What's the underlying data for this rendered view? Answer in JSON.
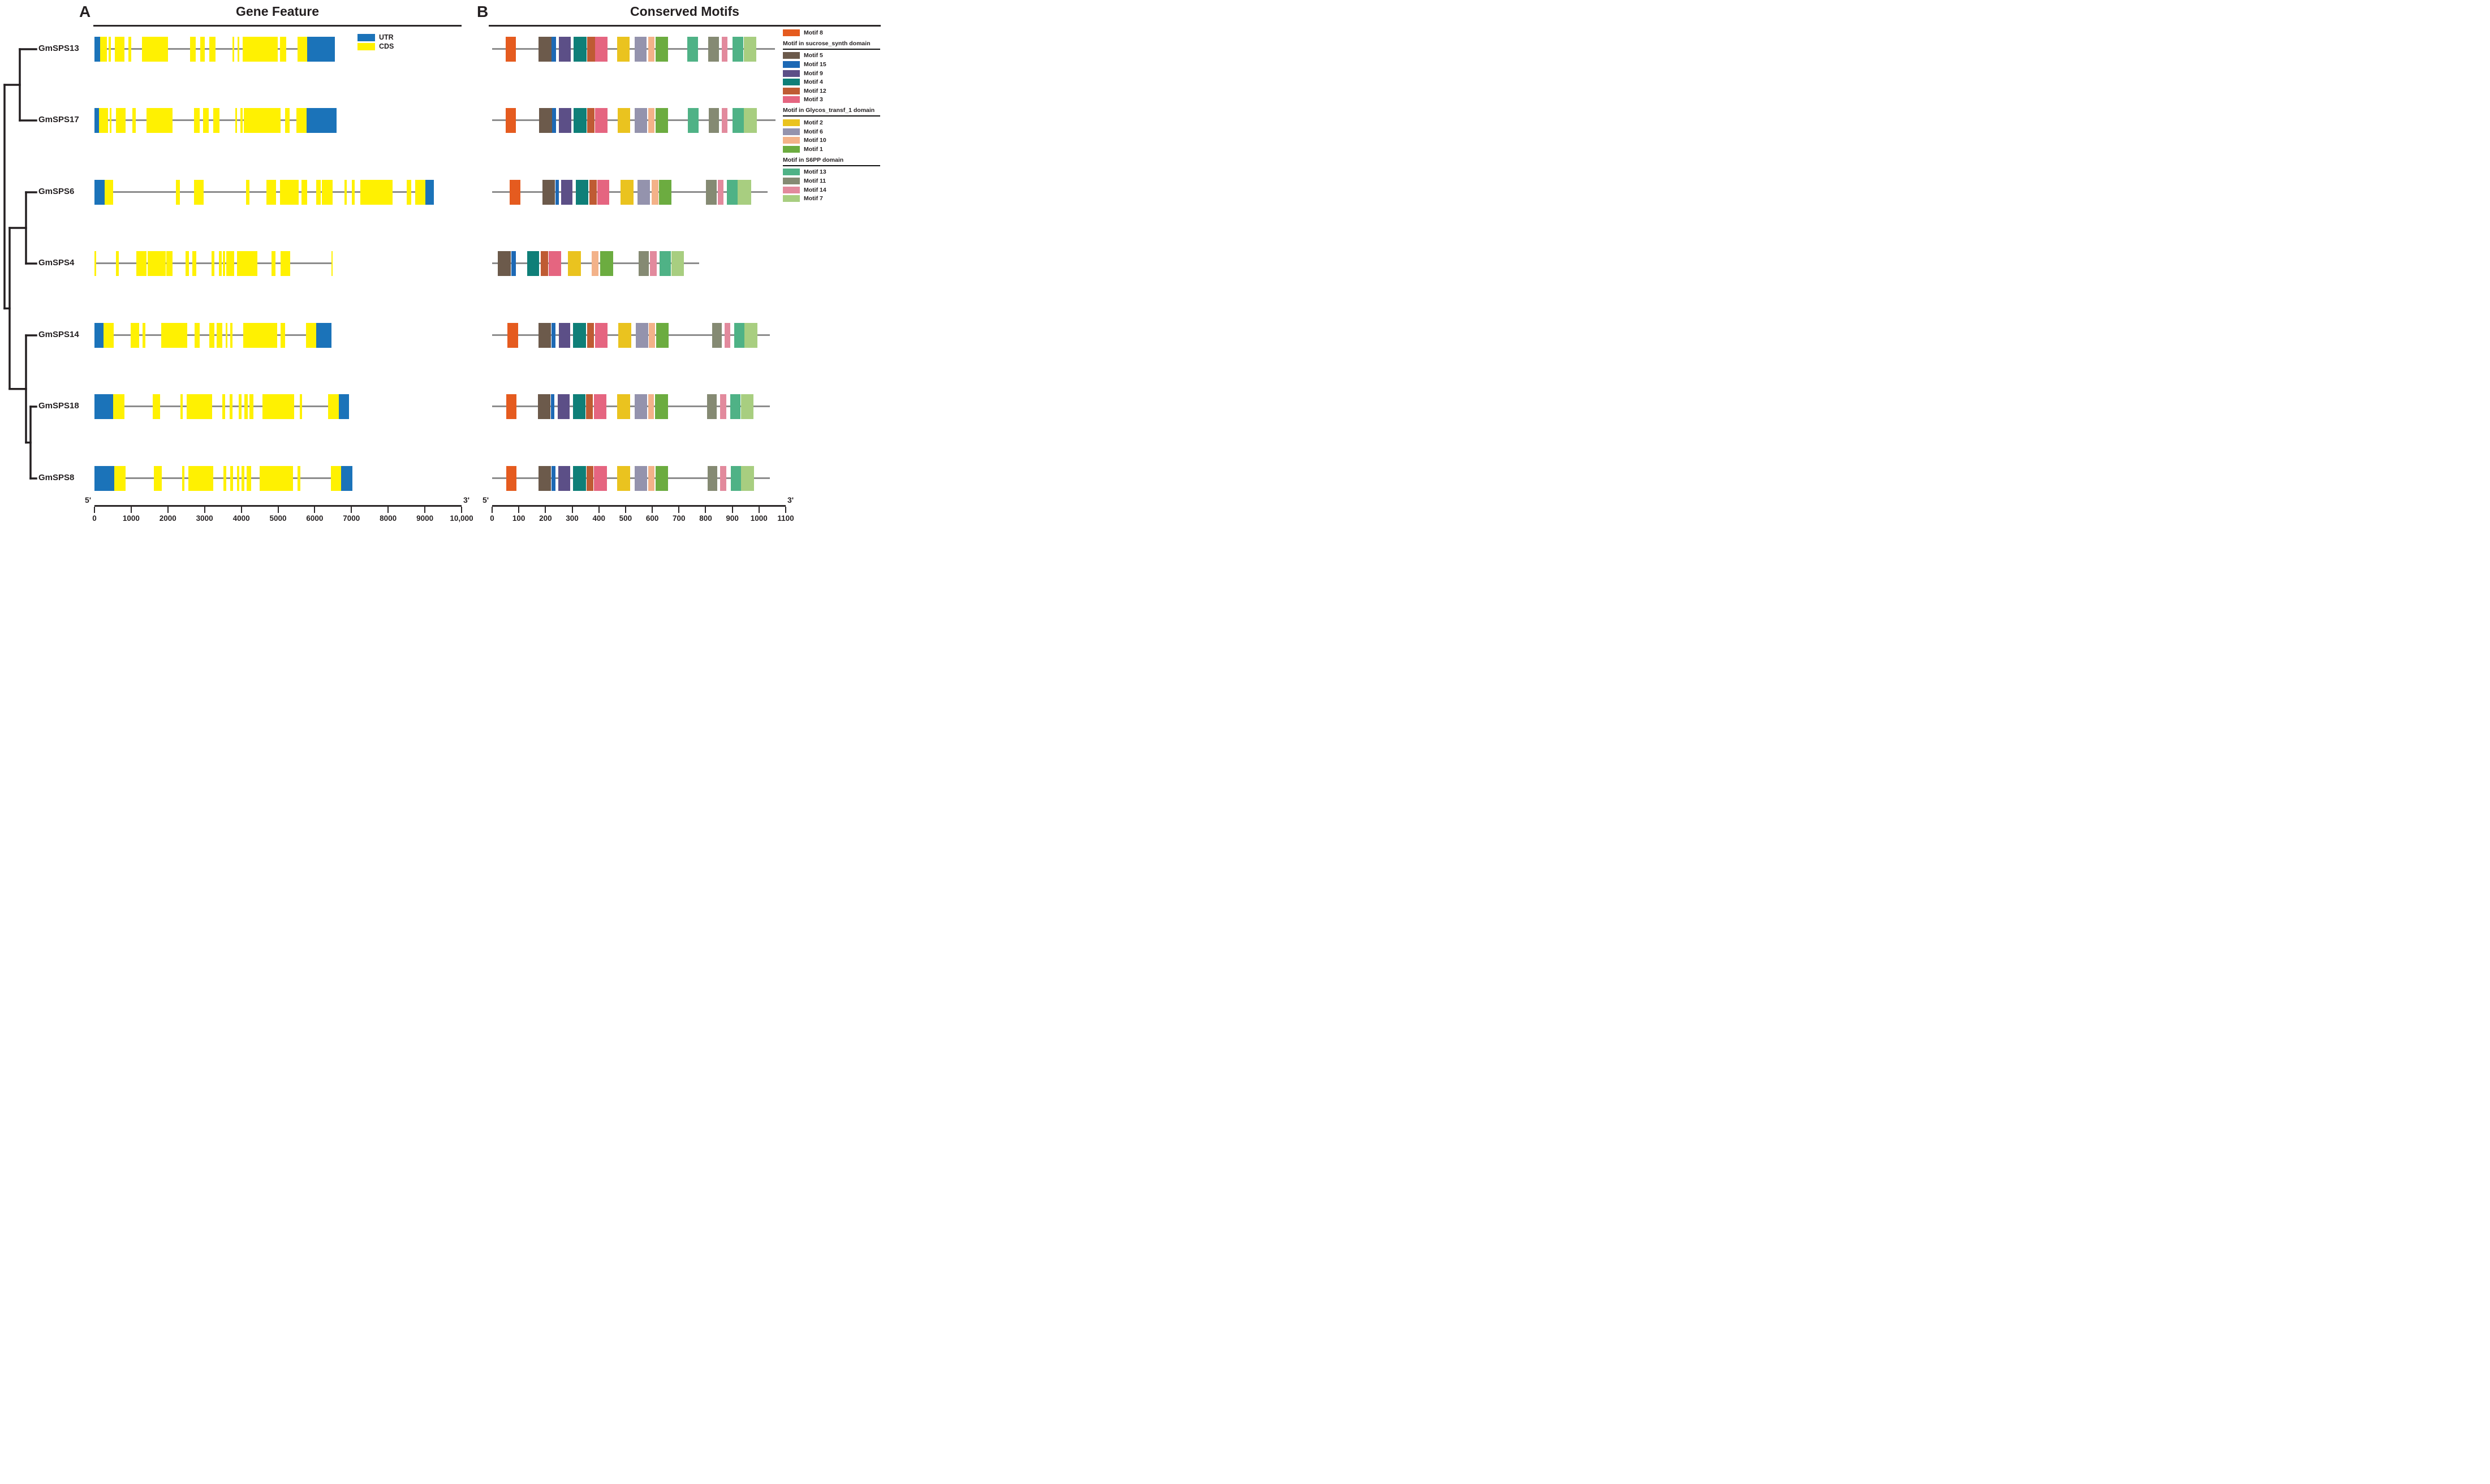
{
  "panel_a": {
    "letter": "A",
    "title": "Gene Feature",
    "legend": {
      "utr_label": "UTR",
      "cds_label": "CDS"
    },
    "axis": {
      "start_label": "5'",
      "end_label": "3'",
      "min": 0,
      "max": 10000,
      "tick_values": [
        0,
        1000,
        2000,
        3000,
        4000,
        5000,
        6000,
        7000,
        8000,
        9000,
        10000
      ],
      "tick_labels": [
        "0",
        "1000",
        "2000",
        "3000",
        "4000",
        "5000",
        "6000",
        "7000",
        "8000",
        "9000",
        "10,000"
      ]
    },
    "genes": [
      {
        "name": "GmSPS13",
        "length": 6550,
        "utr5": [
          0,
          150
        ],
        "utr3": [
          5800,
          6550
        ],
        "exons": [
          [
            150,
            340
          ],
          [
            385,
            445
          ],
          [
            550,
            820
          ],
          [
            930,
            995
          ],
          [
            1300,
            2005
          ],
          [
            2610,
            2760
          ],
          [
            2875,
            3010
          ],
          [
            3125,
            3300
          ],
          [
            3765,
            3805
          ],
          [
            3895,
            3945
          ],
          [
            4030,
            4995
          ],
          [
            5055,
            5225
          ],
          [
            5530,
            5800
          ]
        ]
      },
      {
        "name": "GmSPS17",
        "length": 6590,
        "utr5": [
          0,
          125
        ],
        "utr3": [
          5780,
          6590
        ],
        "exons": [
          [
            125,
            375
          ],
          [
            410,
            470
          ],
          [
            590,
            855
          ],
          [
            1035,
            1130
          ],
          [
            1415,
            2120
          ],
          [
            2710,
            2860
          ],
          [
            2965,
            3110
          ],
          [
            3240,
            3400
          ],
          [
            3835,
            3885
          ],
          [
            3970,
            4030
          ],
          [
            4065,
            5070
          ],
          [
            5195,
            5315
          ],
          [
            5500,
            5780
          ]
        ]
      },
      {
        "name": "GmSPS6",
        "length": 9240,
        "utr5": [
          0,
          280
        ],
        "utr3": [
          9010,
          9240
        ],
        "exons": [
          [
            280,
            510
          ],
          [
            2225,
            2320
          ],
          [
            2710,
            2980
          ],
          [
            4125,
            4220
          ],
          [
            4680,
            4945
          ],
          [
            5060,
            5570
          ],
          [
            5640,
            5790
          ],
          [
            6045,
            6160
          ],
          [
            6200,
            6490
          ],
          [
            6815,
            6880
          ],
          [
            7010,
            7085
          ],
          [
            7240,
            8120
          ],
          [
            8510,
            8625
          ],
          [
            8730,
            9010
          ]
        ]
      },
      {
        "name": "GmSPS4",
        "length": 6490,
        "utr5": null,
        "utr3": null,
        "exons": [
          [
            0,
            50
          ],
          [
            590,
            660
          ],
          [
            1140,
            1410
          ],
          [
            1442,
            1945
          ],
          [
            1957,
            2125
          ],
          [
            2480,
            2575
          ],
          [
            2668,
            2775
          ],
          [
            3185,
            3260
          ],
          [
            3385,
            3465
          ],
          [
            3498,
            3560
          ],
          [
            3592,
            3812
          ],
          [
            3888,
            4442
          ],
          [
            4820,
            4925
          ],
          [
            5070,
            5335
          ],
          [
            6460,
            6490
          ]
        ]
      },
      {
        "name": "GmSPS14",
        "length": 6450,
        "utr5": [
          0,
          240
        ],
        "utr3": [
          6040,
          6450
        ],
        "exons": [
          [
            240,
            520
          ],
          [
            985,
            1215
          ],
          [
            1315,
            1390
          ],
          [
            1820,
            2535
          ],
          [
            2720,
            2870
          ],
          [
            3120,
            3270
          ],
          [
            3320,
            3480
          ],
          [
            3580,
            3630
          ],
          [
            3700,
            3760
          ],
          [
            4045,
            4980
          ],
          [
            5070,
            5195
          ],
          [
            5765,
            6040
          ]
        ]
      },
      {
        "name": "GmSPS18",
        "length": 6930,
        "utr5": [
          0,
          510
        ],
        "utr3": [
          6660,
          6930
        ],
        "exons": [
          [
            510,
            815
          ],
          [
            1590,
            1795
          ],
          [
            2340,
            2405
          ],
          [
            2515,
            3210
          ],
          [
            3480,
            3565
          ],
          [
            3675,
            3760
          ],
          [
            3935,
            4005
          ],
          [
            4090,
            4180
          ],
          [
            4215,
            4335
          ],
          [
            4570,
            5435
          ],
          [
            5585,
            5655
          ],
          [
            6370,
            6660
          ]
        ]
      },
      {
        "name": "GmSPS8",
        "length": 7020,
        "utr5": [
          0,
          545
        ],
        "utr3": [
          6710,
          7020
        ],
        "exons": [
          [
            545,
            850
          ],
          [
            1620,
            1840
          ],
          [
            2395,
            2455
          ],
          [
            2550,
            3240
          ],
          [
            3520,
            3595
          ],
          [
            3700,
            3775
          ],
          [
            3875,
            3945
          ],
          [
            4005,
            4090
          ],
          [
            4140,
            4265
          ],
          [
            4495,
            5405
          ],
          [
            5530,
            5615
          ],
          [
            6440,
            6710
          ]
        ]
      }
    ]
  },
  "panel_b": {
    "letter": "B",
    "title": "Conserved Motifs",
    "axis": {
      "start_label": "5'",
      "end_label": "3'",
      "min": 0,
      "max": 1100,
      "tick_values": [
        0,
        100,
        200,
        300,
        400,
        500,
        600,
        700,
        800,
        900,
        1000,
        1100
      ],
      "tick_labels": [
        "0",
        "100",
        "200",
        "300",
        "400",
        "500",
        "600",
        "700",
        "800",
        "900",
        "1000",
        "1100"
      ]
    },
    "proteins": [
      {
        "name": "GmSPS13",
        "length": 1060,
        "motifs": [
          [
            "8",
            50,
            90
          ],
          [
            "5",
            174,
            223
          ],
          [
            "15",
            223,
            240
          ],
          [
            "9",
            249,
            295
          ],
          [
            "4",
            305,
            354
          ],
          [
            "12",
            356,
            385
          ],
          [
            "3",
            386,
            432
          ],
          [
            "2",
            469,
            516
          ],
          [
            "6",
            533,
            579
          ],
          [
            "10",
            584,
            608
          ],
          [
            "1",
            613,
            659
          ],
          [
            "13",
            732,
            772
          ],
          [
            "11",
            810,
            850
          ],
          [
            "14",
            860,
            881
          ],
          [
            "13",
            900,
            942
          ],
          [
            "7",
            943,
            990
          ]
        ]
      },
      {
        "name": "GmSPS17",
        "length": 1062,
        "motifs": [
          [
            "8",
            50,
            90
          ],
          [
            "5",
            175,
            224
          ],
          [
            "15",
            224,
            240
          ],
          [
            "9",
            250,
            296
          ],
          [
            "4",
            305,
            354
          ],
          [
            "12",
            356,
            384
          ],
          [
            "3",
            386,
            432
          ],
          [
            "2",
            470,
            517
          ],
          [
            "6",
            534,
            580
          ],
          [
            "10",
            585,
            608
          ],
          [
            "1",
            613,
            659
          ],
          [
            "13",
            733,
            773
          ],
          [
            "11",
            812,
            851
          ],
          [
            "14",
            861,
            882
          ],
          [
            "13",
            901,
            943
          ],
          [
            "7",
            944,
            991
          ]
        ]
      },
      {
        "name": "GmSPS6",
        "length": 1032,
        "motifs": [
          [
            "8",
            66,
            106
          ],
          [
            "5",
            188,
            235
          ],
          [
            "15",
            237,
            251
          ],
          [
            "9",
            259,
            302
          ],
          [
            "4",
            314,
            361
          ],
          [
            "12",
            365,
            392
          ],
          [
            "3",
            395,
            439
          ],
          [
            "2",
            482,
            529
          ],
          [
            "6",
            545,
            592
          ],
          [
            "10",
            597,
            623
          ],
          [
            "1",
            625,
            671
          ],
          [
            "11",
            800,
            841
          ],
          [
            "14",
            845,
            866
          ],
          [
            "13",
            880,
            920
          ],
          [
            "7",
            920,
            971
          ]
        ]
      },
      {
        "name": "GmSPS4",
        "length": 776,
        "motifs": [
          [
            "5",
            21,
            70
          ],
          [
            "15",
            72,
            89
          ],
          [
            "4",
            131,
            177
          ],
          [
            "12",
            182,
            209
          ],
          [
            "3",
            211,
            258
          ],
          [
            "2",
            284,
            333
          ],
          [
            "10",
            373,
            398
          ],
          [
            "1",
            405,
            453
          ],
          [
            "11",
            549,
            588
          ],
          [
            "14",
            592,
            616
          ],
          [
            "13",
            627,
            669
          ],
          [
            "7",
            672,
            718
          ]
        ]
      },
      {
        "name": "GmSPS14",
        "length": 1040,
        "motifs": [
          [
            "8",
            57,
            97
          ],
          [
            "5",
            174,
            221
          ],
          [
            "15",
            223,
            238
          ],
          [
            "9",
            249,
            293
          ],
          [
            "4",
            304,
            353
          ],
          [
            "12",
            356,
            381
          ],
          [
            "3",
            385,
            432
          ],
          [
            "2",
            472,
            521
          ],
          [
            "6",
            539,
            585
          ],
          [
            "10",
            588,
            611
          ],
          [
            "1",
            614,
            662
          ],
          [
            "11",
            824,
            861
          ],
          [
            "14",
            872,
            893
          ],
          [
            "13",
            907,
            946
          ],
          [
            "7",
            946,
            994
          ]
        ]
      },
      {
        "name": "GmSPS18",
        "length": 1040,
        "motifs": [
          [
            "8",
            52,
            92
          ],
          [
            "5",
            172,
            219
          ],
          [
            "15",
            221,
            234
          ],
          [
            "9",
            245,
            291
          ],
          [
            "4",
            302,
            349
          ],
          [
            "12",
            352,
            378
          ],
          [
            "3",
            382,
            429
          ],
          [
            "2",
            468,
            517
          ],
          [
            "6",
            535,
            581
          ],
          [
            "10",
            584,
            607
          ],
          [
            "1",
            611,
            659
          ],
          [
            "11",
            806,
            842
          ],
          [
            "14",
            855,
            877
          ],
          [
            "13",
            892,
            931
          ],
          [
            "7",
            932,
            979
          ]
        ]
      },
      {
        "name": "GmSPS8",
        "length": 1040,
        "motifs": [
          [
            "8",
            52,
            91
          ],
          [
            "5",
            173,
            221
          ],
          [
            "15",
            222,
            237
          ],
          [
            "9",
            247,
            293
          ],
          [
            "4",
            303,
            351
          ],
          [
            "12",
            354,
            380
          ],
          [
            "3",
            382,
            430
          ],
          [
            "2",
            469,
            517
          ],
          [
            "6",
            534,
            581
          ],
          [
            "10",
            584,
            608
          ],
          [
            "1",
            612,
            660
          ],
          [
            "11",
            808,
            844
          ],
          [
            "14",
            853,
            877
          ],
          [
            "13",
            894,
            933
          ],
          [
            "7",
            933,
            981
          ]
        ]
      }
    ],
    "legend": {
      "top_item": {
        "motif": "8",
        "label": "Motif 8"
      },
      "groups": [
        {
          "header": "Motif in sucrose_synth domain",
          "items": [
            {
              "motif": "5",
              "label": "Motif 5"
            },
            {
              "motif": "15",
              "label": "Motif 15"
            },
            {
              "motif": "9",
              "label": "Motif 9"
            },
            {
              "motif": "4",
              "label": "Motif 4"
            },
            {
              "motif": "12",
              "label": "Motif 12"
            },
            {
              "motif": "3",
              "label": "Motif 3"
            }
          ]
        },
        {
          "header": "Motif in Glycos_transf_1 domain",
          "items": [
            {
              "motif": "2",
              "label": "Motif 2"
            },
            {
              "motif": "6",
              "label": "Motif 6"
            },
            {
              "motif": "10",
              "label": "Motif 10"
            },
            {
              "motif": "1",
              "label": "Motif 1"
            }
          ]
        },
        {
          "header": "Motif in S6PP domain",
          "items": [
            {
              "motif": "13",
              "label": "Motif 13"
            },
            {
              "motif": "11",
              "label": "Motif 11"
            },
            {
              "motif": "14",
              "label": "Motif 14"
            },
            {
              "motif": "7",
              "label": "Motif 7"
            }
          ]
        }
      ]
    }
  },
  "tree": {
    "tip_order": [
      "GmSPS13",
      "GmSPS17",
      "GmSPS6",
      "GmSPS4",
      "GmSPS14",
      "GmSPS18",
      "GmSPS8"
    ],
    "topology": "((GmSPS13,GmSPS17),((GmSPS6,GmSPS4),(GmSPS14,(GmSPS18,GmSPS8))))"
  },
  "colors": {
    "utr": "#1B73B9",
    "cds": "#FFF101",
    "backbone": "#8C8C8C",
    "tree": "#231F20",
    "motif_colors": {
      "8": "#E55B1F",
      "5": "#6C5A4B",
      "15": "#1D69B5",
      "9": "#5C4F87",
      "4": "#0F7F78",
      "12": "#BF5B33",
      "3": "#E56580",
      "2": "#EAC31F",
      "6": "#9493AD",
      "10": "#F3B289",
      "1": "#6CAC40",
      "13": "#4FB286",
      "11": "#858A73",
      "14": "#E28A9D",
      "7": "#A8CE80"
    }
  }
}
